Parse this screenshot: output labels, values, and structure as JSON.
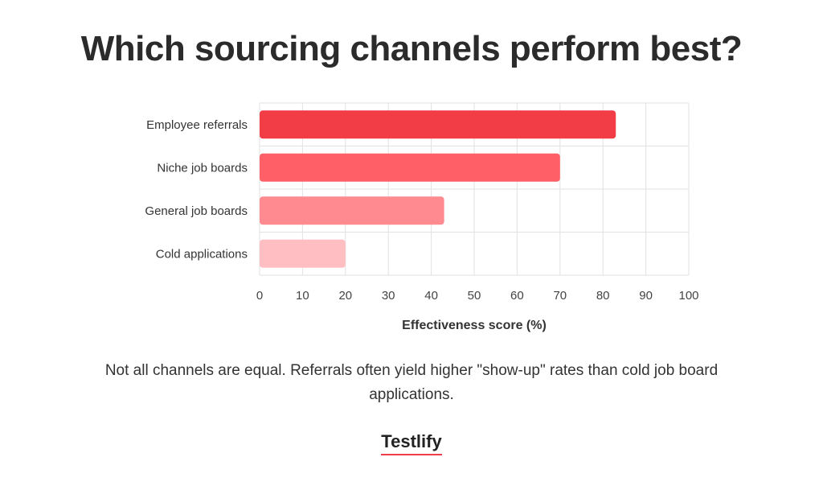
{
  "title": "Which sourcing channels perform best?",
  "caption": "Not all channels are equal. Referrals often yield higher \"show-up\" rates than cold job board applications.",
  "brand": "Testlify",
  "colors": {
    "accent": "#ef3e4a",
    "bars": [
      "#f23c46",
      "#ff6068",
      "#ff8a8f",
      "#ffbfc2"
    ],
    "grid": "#e2e2e2"
  },
  "chart_data": {
    "type": "bar",
    "orientation": "horizontal",
    "categories": [
      "Employee referrals",
      "Niche job boards",
      "General job boards",
      "Cold applications"
    ],
    "values": [
      83,
      70,
      43,
      20
    ],
    "xlabel": "Effectiveness score (%)",
    "ylabel": "",
    "xlim": [
      0,
      100
    ],
    "xticks": [
      0,
      10,
      20,
      30,
      40,
      50,
      60,
      70,
      80,
      90,
      100
    ],
    "grid": true,
    "legend": "none"
  }
}
